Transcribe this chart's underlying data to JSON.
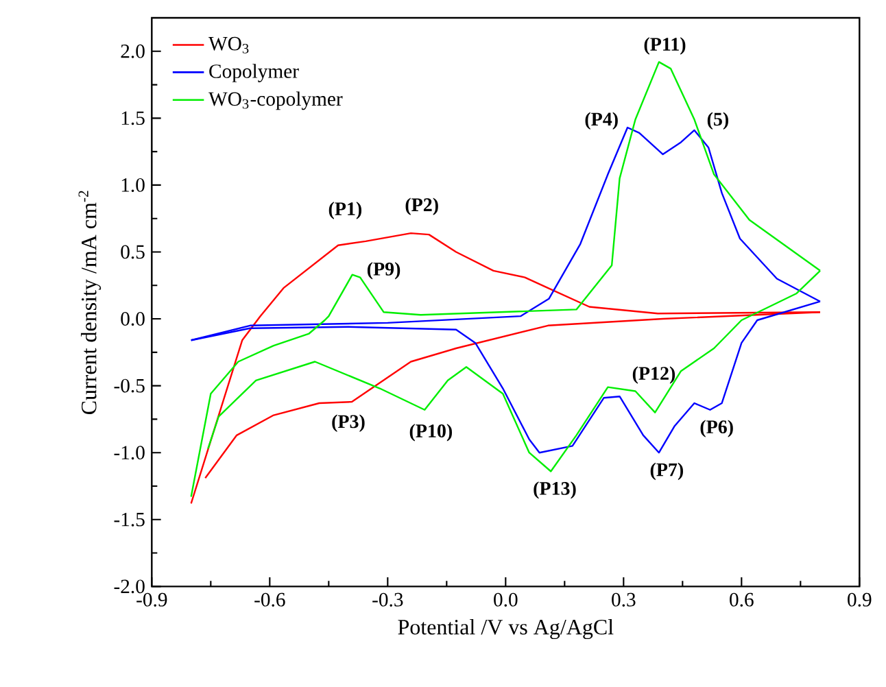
{
  "chart_data": {
    "type": "line",
    "xlabel": "Potential /V vs Ag/AgCl",
    "ylabel": "Current density /mA cm$^{-2}$",
    "xlim": [
      -0.9,
      0.9
    ],
    "ylim": [
      -2.0,
      2.25
    ],
    "xticks": [
      {
        "value": -0.9,
        "label": "-0.9"
      },
      {
        "value": -0.6,
        "label": "-0.6"
      },
      {
        "value": -0.3,
        "label": "-0.3"
      },
      {
        "value": 0.0,
        "label": "0.0"
      },
      {
        "value": 0.3,
        "label": "0.3"
      },
      {
        "value": 0.6,
        "label": "0.6"
      },
      {
        "value": 0.9,
        "label": "0.9"
      }
    ],
    "yticks": [
      {
        "value": -2.0,
        "label": "-2.0"
      },
      {
        "value": -1.5,
        "label": "-1.5"
      },
      {
        "value": -1.0,
        "label": "-1.0"
      },
      {
        "value": -0.5,
        "label": "-0.5"
      },
      {
        "value": 0.0,
        "label": "0.0"
      },
      {
        "value": 0.5,
        "label": "0.5"
      },
      {
        "value": 1.0,
        "label": "1.0"
      },
      {
        "value": 1.5,
        "label": "1.5"
      },
      {
        "value": 2.0,
        "label": "2.0"
      }
    ],
    "grid": false,
    "legend": "top left",
    "marker": "none",
    "line_style": "solid",
    "series": [
      {
        "name": "WO$_{3}$",
        "color": "#ff0000",
        "x": [
          -0.8,
          -0.67,
          -0.624,
          -0.565,
          -0.426,
          -0.356,
          -0.241,
          -0.195,
          -0.126,
          -0.031,
          0.049,
          0.108,
          0.213,
          0.387,
          0.8
        ],
        "values": [
          -1.38,
          -0.16,
          0.02,
          0.23,
          0.55,
          0.58,
          0.64,
          0.63,
          0.5,
          0.36,
          0.31,
          0.23,
          0.09,
          0.04,
          0.05
        ]
      },
      {
        "color": "#ff0000",
        "x": [
          -0.764,
          -0.684,
          -0.59,
          -0.474,
          -0.391,
          -0.241,
          -0.126,
          0.108,
          0.4,
          0.8
        ],
        "values": [
          -1.19,
          -0.87,
          -0.72,
          -0.63,
          -0.62,
          -0.32,
          -0.22,
          -0.05,
          0.0,
          0.05
        ]
      },
      {
        "name": "Copolymer",
        "color": "#0000ff",
        "x": [
          -0.8,
          -0.65,
          -0.3,
          0.038,
          0.11,
          0.19,
          0.26,
          0.31,
          0.34,
          0.4,
          0.446,
          0.48,
          0.516,
          0.55,
          0.596,
          0.69,
          0.8
        ],
        "values": [
          -0.16,
          -0.05,
          -0.03,
          0.02,
          0.15,
          0.56,
          1.08,
          1.43,
          1.39,
          1.23,
          1.32,
          1.41,
          1.28,
          0.94,
          0.6,
          0.3,
          0.13
        ]
      },
      {
        "color": "#0000ff",
        "x": [
          -0.8,
          -0.65,
          -0.4,
          -0.126,
          -0.077,
          -0.007,
          0.06,
          0.086,
          0.17,
          0.25,
          0.29,
          0.35,
          0.39,
          0.43,
          0.48,
          0.52,
          0.55,
          0.6,
          0.64,
          0.8
        ],
        "values": [
          -0.16,
          -0.07,
          -0.06,
          -0.08,
          -0.18,
          -0.52,
          -0.9,
          -1.0,
          -0.95,
          -0.59,
          -0.58,
          -0.87,
          -1.0,
          -0.8,
          -0.63,
          -0.68,
          -0.63,
          -0.18,
          -0.01,
          0.13
        ]
      },
      {
        "name": "WO$_{3}$-copolymer",
        "color": "#00ee00",
        "x": [
          -0.8,
          -0.75,
          -0.68,
          -0.59,
          -0.5,
          -0.46,
          -0.45,
          -0.39,
          -0.37,
          -0.31,
          -0.216,
          0.18,
          0.27,
          0.29,
          0.33,
          0.39,
          0.42,
          0.48,
          0.53,
          0.62,
          0.8
        ],
        "values": [
          -1.33,
          -0.56,
          -0.32,
          -0.2,
          -0.11,
          -0.01,
          0.02,
          0.33,
          0.31,
          0.05,
          0.03,
          0.07,
          0.4,
          1.05,
          1.49,
          1.92,
          1.87,
          1.49,
          1.08,
          0.74,
          0.36
        ]
      },
      {
        "color": "#00ee00",
        "x": [
          -0.757,
          -0.73,
          -0.635,
          -0.485,
          -0.32,
          -0.206,
          -0.147,
          -0.1,
          -0.007,
          0.06,
          0.115,
          0.18,
          0.26,
          0.33,
          0.38,
          0.446,
          0.53,
          0.6,
          0.74,
          0.8
        ],
        "values": [
          -0.97,
          -0.73,
          -0.46,
          -0.32,
          -0.52,
          -0.68,
          -0.46,
          -0.36,
          -0.56,
          -1.0,
          -1.14,
          -0.87,
          -0.51,
          -0.54,
          -0.7,
          -0.39,
          -0.22,
          -0.01,
          0.19,
          0.36
        ]
      }
    ],
    "annotations": [
      "(P1)",
      "(P2)",
      "(P9)",
      "(P3)",
      "(P10)",
      "(P13)",
      "(P7)",
      "(P6)",
      "(P12)",
      "(P4)",
      "(5)",
      "(P11)"
    ]
  }
}
